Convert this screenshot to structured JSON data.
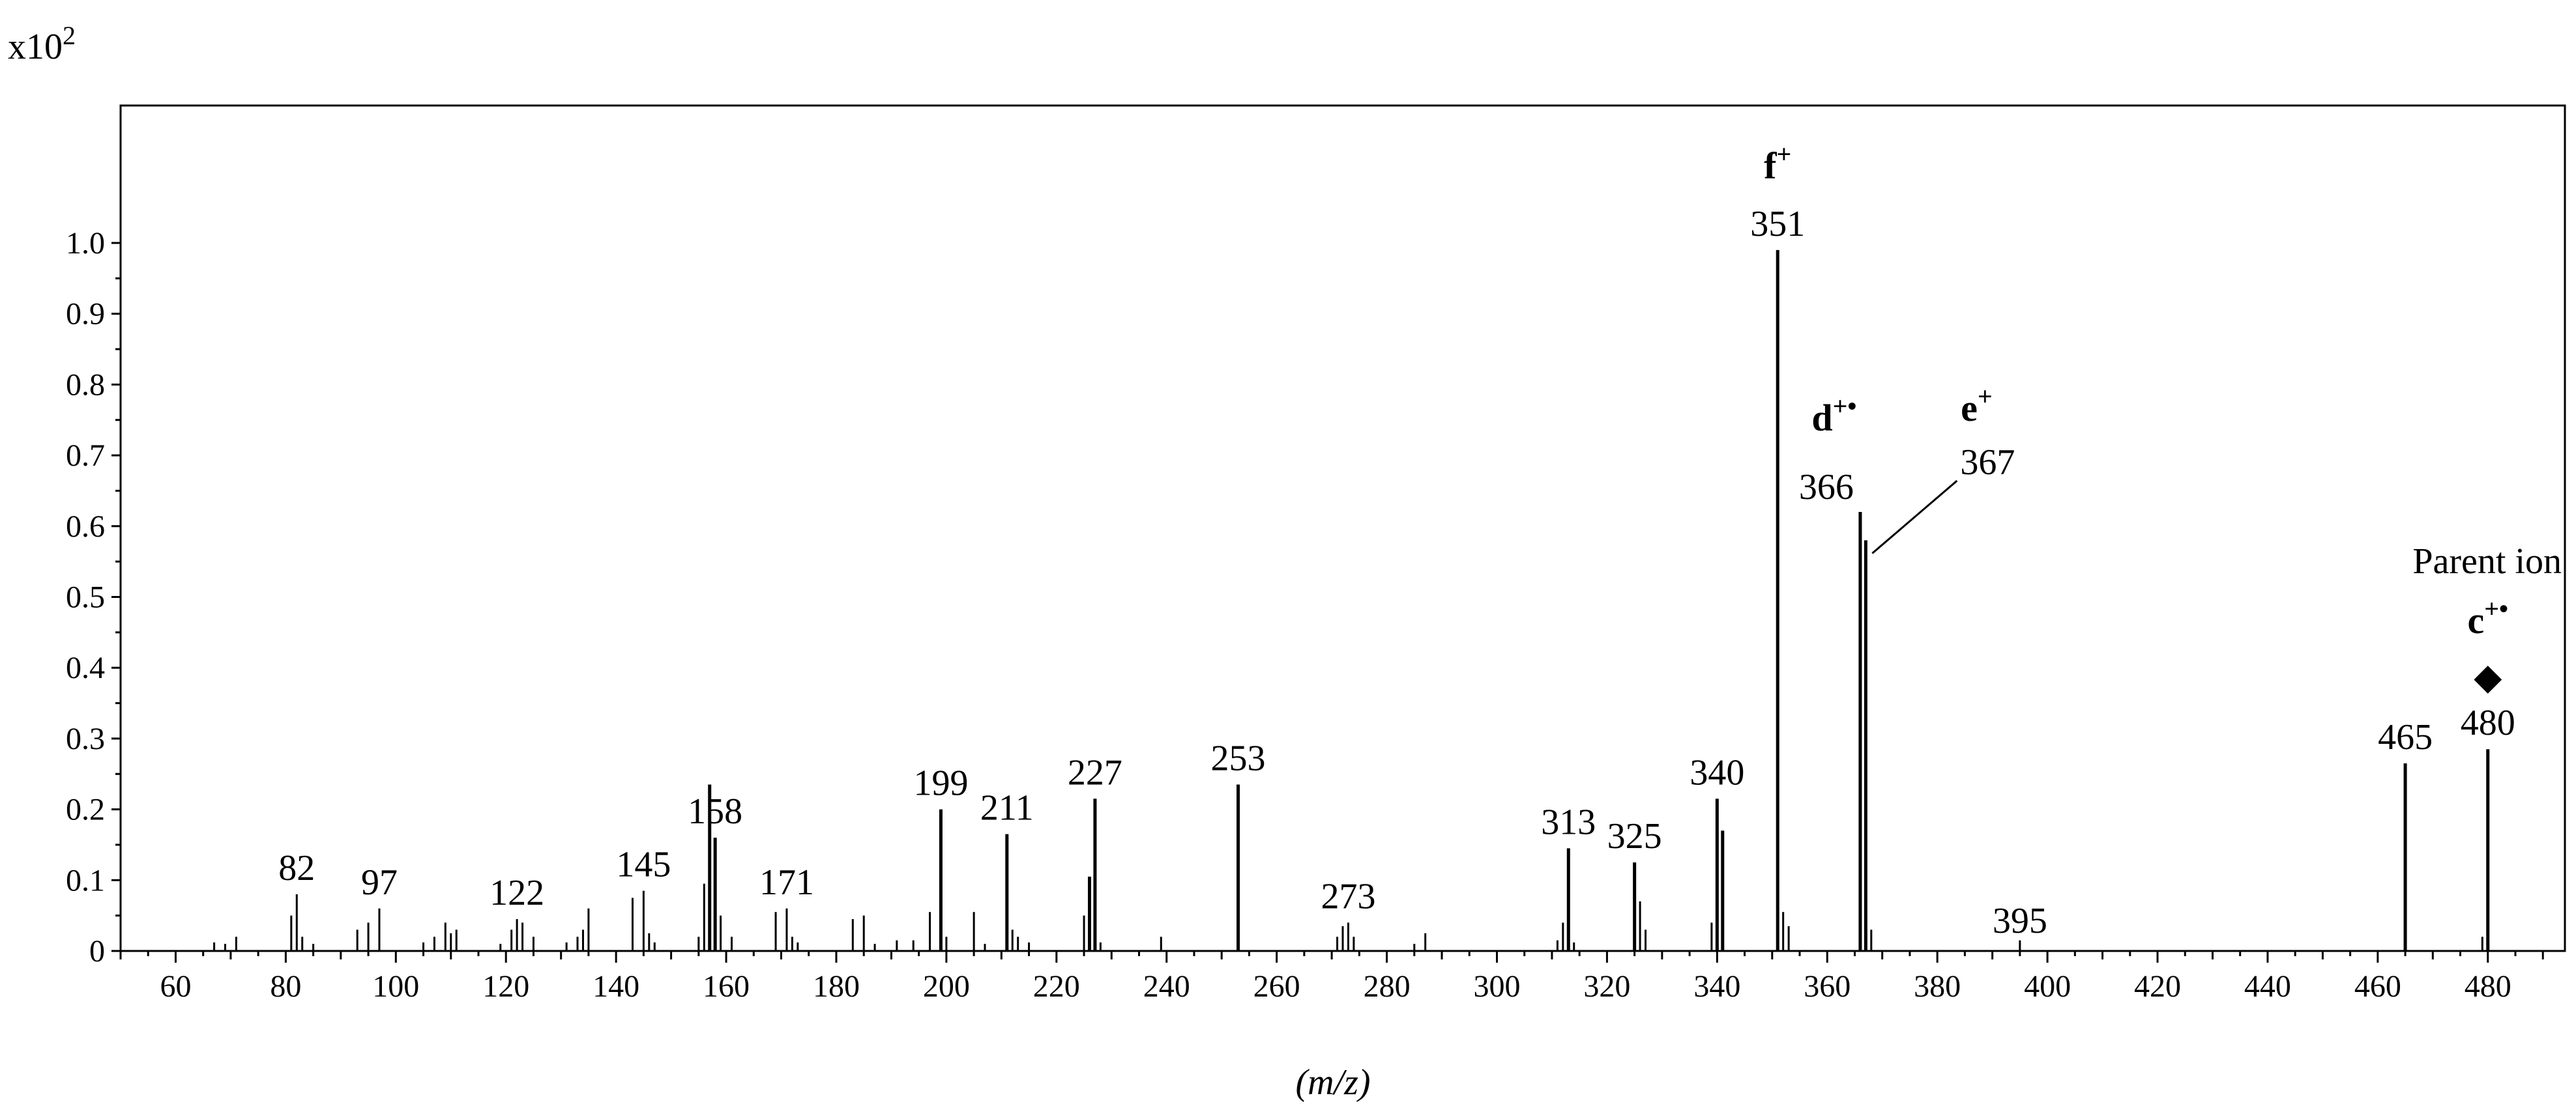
{
  "chart_data": {
    "type": "bar",
    "title": "",
    "xlabel": "(m/z)",
    "ylabel": "",
    "y_scale_label": "x10",
    "y_scale_exponent": "2",
    "xlim": [
      50,
      494
    ],
    "ylim": [
      0,
      1.0
    ],
    "grid": false,
    "x_ticks": [
      60,
      80,
      100,
      120,
      140,
      160,
      180,
      200,
      220,
      240,
      260,
      280,
      300,
      320,
      340,
      360,
      380,
      400,
      420,
      440,
      460,
      480
    ],
    "y_ticks": [
      {
        "value": 0,
        "label": "0"
      },
      {
        "value": 0.1,
        "label": "0.1"
      },
      {
        "value": 0.2,
        "label": "0.2"
      },
      {
        "value": 0.3,
        "label": "0.3"
      },
      {
        "value": 0.4,
        "label": "0.4"
      },
      {
        "value": 0.5,
        "label": "0.5"
      },
      {
        "value": 0.6,
        "label": "0.6"
      },
      {
        "value": 0.7,
        "label": "0.7"
      },
      {
        "value": 0.8,
        "label": "0.8"
      },
      {
        "value": 0.9,
        "label": "0.9"
      },
      {
        "value": 1.0,
        "label": "1.0"
      }
    ],
    "peaks": [
      {
        "mz": 67,
        "intensity": 0.012
      },
      {
        "mz": 69,
        "intensity": 0.01
      },
      {
        "mz": 71,
        "intensity": 0.02
      },
      {
        "mz": 81,
        "intensity": 0.05
      },
      {
        "mz": 82,
        "intensity": 0.08
      },
      {
        "mz": 83,
        "intensity": 0.02
      },
      {
        "mz": 85,
        "intensity": 0.01
      },
      {
        "mz": 93,
        "intensity": 0.03
      },
      {
        "mz": 95,
        "intensity": 0.04
      },
      {
        "mz": 97,
        "intensity": 0.06
      },
      {
        "mz": 105,
        "intensity": 0.012
      },
      {
        "mz": 107,
        "intensity": 0.02
      },
      {
        "mz": 109,
        "intensity": 0.04
      },
      {
        "mz": 110,
        "intensity": 0.025
      },
      {
        "mz": 111,
        "intensity": 0.03
      },
      {
        "mz": 119,
        "intensity": 0.01
      },
      {
        "mz": 121,
        "intensity": 0.03
      },
      {
        "mz": 122,
        "intensity": 0.045
      },
      {
        "mz": 123,
        "intensity": 0.04
      },
      {
        "mz": 125,
        "intensity": 0.02
      },
      {
        "mz": 131,
        "intensity": 0.012
      },
      {
        "mz": 133,
        "intensity": 0.02
      },
      {
        "mz": 134,
        "intensity": 0.03
      },
      {
        "mz": 135,
        "intensity": 0.06
      },
      {
        "mz": 143,
        "intensity": 0.075
      },
      {
        "mz": 145,
        "intensity": 0.085
      },
      {
        "mz": 146,
        "intensity": 0.025
      },
      {
        "mz": 147,
        "intensity": 0.012
      },
      {
        "mz": 155,
        "intensity": 0.02
      },
      {
        "mz": 156,
        "intensity": 0.095
      },
      {
        "mz": 157,
        "intensity": 0.235
      },
      {
        "mz": 158,
        "intensity": 0.16
      },
      {
        "mz": 159,
        "intensity": 0.05
      },
      {
        "mz": 161,
        "intensity": 0.02
      },
      {
        "mz": 169,
        "intensity": 0.055
      },
      {
        "mz": 171,
        "intensity": 0.06
      },
      {
        "mz": 172,
        "intensity": 0.02
      },
      {
        "mz": 173,
        "intensity": 0.012
      },
      {
        "mz": 183,
        "intensity": 0.045
      },
      {
        "mz": 185,
        "intensity": 0.05
      },
      {
        "mz": 187,
        "intensity": 0.01
      },
      {
        "mz": 191,
        "intensity": 0.015
      },
      {
        "mz": 194,
        "intensity": 0.015
      },
      {
        "mz": 197,
        "intensity": 0.055
      },
      {
        "mz": 199,
        "intensity": 0.2
      },
      {
        "mz": 200,
        "intensity": 0.02
      },
      {
        "mz": 205,
        "intensity": 0.055
      },
      {
        "mz": 207,
        "intensity": 0.01
      },
      {
        "mz": 211,
        "intensity": 0.165
      },
      {
        "mz": 212,
        "intensity": 0.03
      },
      {
        "mz": 213,
        "intensity": 0.02
      },
      {
        "mz": 215,
        "intensity": 0.012
      },
      {
        "mz": 225,
        "intensity": 0.05
      },
      {
        "mz": 226,
        "intensity": 0.105
      },
      {
        "mz": 227,
        "intensity": 0.215
      },
      {
        "mz": 228,
        "intensity": 0.012
      },
      {
        "mz": 239,
        "intensity": 0.02
      },
      {
        "mz": 253,
        "intensity": 0.235
      },
      {
        "mz": 271,
        "intensity": 0.02
      },
      {
        "mz": 272,
        "intensity": 0.035
      },
      {
        "mz": 273,
        "intensity": 0.04
      },
      {
        "mz": 274,
        "intensity": 0.02
      },
      {
        "mz": 285,
        "intensity": 0.01
      },
      {
        "mz": 287,
        "intensity": 0.025
      },
      {
        "mz": 311,
        "intensity": 0.015
      },
      {
        "mz": 312,
        "intensity": 0.04
      },
      {
        "mz": 313,
        "intensity": 0.145
      },
      {
        "mz": 314,
        "intensity": 0.012
      },
      {
        "mz": 325,
        "intensity": 0.125
      },
      {
        "mz": 326,
        "intensity": 0.07
      },
      {
        "mz": 327,
        "intensity": 0.03
      },
      {
        "mz": 339,
        "intensity": 0.04
      },
      {
        "mz": 340,
        "intensity": 0.215
      },
      {
        "mz": 341,
        "intensity": 0.17
      },
      {
        "mz": 351,
        "intensity": 0.99
      },
      {
        "mz": 352,
        "intensity": 0.055
      },
      {
        "mz": 353,
        "intensity": 0.035
      },
      {
        "mz": 366,
        "intensity": 0.62
      },
      {
        "mz": 367,
        "intensity": 0.58
      },
      {
        "mz": 368,
        "intensity": 0.03
      },
      {
        "mz": 395,
        "intensity": 0.015
      },
      {
        "mz": 465,
        "intensity": 0.265
      },
      {
        "mz": 479,
        "intensity": 0.02
      },
      {
        "mz": 480,
        "intensity": 0.285
      }
    ],
    "peak_labels": [
      {
        "mz": 82,
        "text": "82"
      },
      {
        "mz": 97,
        "text": "97"
      },
      {
        "mz": 122,
        "text": "122"
      },
      {
        "mz": 145,
        "text": "145"
      },
      {
        "mz": 158,
        "text": "158"
      },
      {
        "mz": 171,
        "text": "171"
      },
      {
        "mz": 199,
        "text": "199"
      },
      {
        "mz": 211,
        "text": "211"
      },
      {
        "mz": 227,
        "text": "227"
      },
      {
        "mz": 253,
        "text": "253"
      },
      {
        "mz": 273,
        "text": "273"
      },
      {
        "mz": 313,
        "text": "313"
      },
      {
        "mz": 325,
        "text": "325"
      },
      {
        "mz": 340,
        "text": "340"
      },
      {
        "mz": 351,
        "text": "351"
      },
      {
        "mz": 366,
        "text": "366"
      },
      {
        "mz": 367,
        "text": "367"
      },
      {
        "mz": 395,
        "text": "395"
      },
      {
        "mz": 465,
        "text": "465"
      },
      {
        "mz": 480,
        "text": "480"
      }
    ],
    "ion_labels": [
      {
        "mz": 351,
        "letter": "f",
        "charge": "+"
      },
      {
        "mz": 366,
        "letter": "d",
        "charge": "+•"
      },
      {
        "mz": 367,
        "letter": "e",
        "charge": "+"
      },
      {
        "mz": 480,
        "letter": "c",
        "charge": "+•"
      }
    ],
    "annotations": {
      "parent_ion": "Parent ion",
      "parent_marker": "◆"
    }
  }
}
